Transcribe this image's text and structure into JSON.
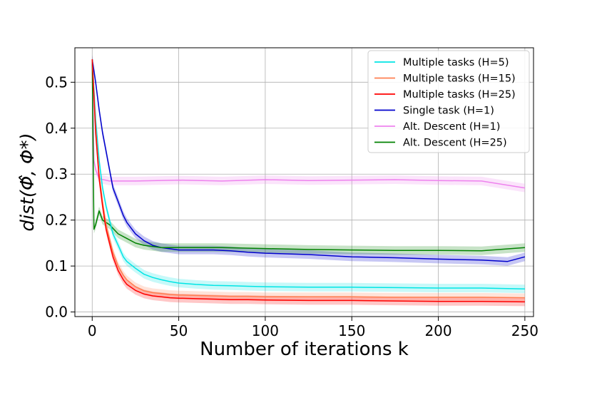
{
  "chart_data": {
    "type": "line",
    "title": "",
    "xlabel": "Number of iterations k",
    "ylabel": "dist(Φ̂, Φ*)",
    "xlim": [
      -10,
      255
    ],
    "ylim": [
      -0.01,
      0.575
    ],
    "xticks": [
      0,
      50,
      100,
      150,
      200,
      250
    ],
    "yticks": [
      0.0,
      0.1,
      0.2,
      0.3,
      0.4,
      0.5
    ],
    "xtick_labels": [
      "0",
      "50",
      "100",
      "150",
      "200",
      "250"
    ],
    "ytick_labels": [
      "0.0",
      "0.1",
      "0.2",
      "0.3",
      "0.4",
      "0.5"
    ],
    "grid": true,
    "legend_position": "upper right",
    "series": [
      {
        "name": "Multiple tasks (H=5)",
        "color": "#00e5e5",
        "x": [
          0,
          2,
          4,
          6,
          8,
          10,
          12,
          15,
          18,
          20,
          25,
          30,
          35,
          40,
          45,
          50,
          60,
          70,
          80,
          90,
          100,
          125,
          150,
          175,
          200,
          225,
          250
        ],
        "y": [
          0.55,
          0.42,
          0.33,
          0.27,
          0.23,
          0.2,
          0.17,
          0.145,
          0.12,
          0.11,
          0.095,
          0.082,
          0.075,
          0.07,
          0.066,
          0.063,
          0.06,
          0.058,
          0.057,
          0.056,
          0.055,
          0.054,
          0.054,
          0.053,
          0.052,
          0.052,
          0.05
        ]
      },
      {
        "name": "Multiple tasks (H=15)",
        "color": "#ff7f50",
        "x": [
          0,
          2,
          4,
          6,
          8,
          10,
          12,
          15,
          18,
          20,
          25,
          30,
          35,
          40,
          45,
          50,
          60,
          70,
          80,
          90,
          100,
          125,
          150,
          175,
          200,
          225,
          250
        ],
        "y": [
          0.55,
          0.4,
          0.3,
          0.24,
          0.19,
          0.16,
          0.13,
          0.1,
          0.08,
          0.07,
          0.055,
          0.046,
          0.042,
          0.04,
          0.038,
          0.037,
          0.036,
          0.035,
          0.034,
          0.034,
          0.033,
          0.033,
          0.033,
          0.032,
          0.032,
          0.032,
          0.031
        ]
      },
      {
        "name": "Multiple tasks (H=25)",
        "color": "#ff0000",
        "x": [
          0,
          2,
          4,
          6,
          8,
          10,
          12,
          15,
          18,
          20,
          25,
          30,
          35,
          40,
          45,
          50,
          60,
          70,
          80,
          90,
          100,
          125,
          150,
          175,
          200,
          225,
          250
        ],
        "y": [
          0.55,
          0.39,
          0.29,
          0.23,
          0.18,
          0.15,
          0.12,
          0.09,
          0.07,
          0.06,
          0.047,
          0.039,
          0.035,
          0.033,
          0.031,
          0.03,
          0.029,
          0.028,
          0.027,
          0.027,
          0.026,
          0.025,
          0.025,
          0.024,
          0.023,
          0.023,
          0.022
        ]
      },
      {
        "name": "Single task (H=1)",
        "color": "#0000cc",
        "x": [
          0,
          2,
          4,
          6,
          8,
          10,
          12,
          15,
          18,
          20,
          25,
          30,
          35,
          40,
          50,
          60,
          70,
          80,
          90,
          100,
          125,
          150,
          175,
          200,
          225,
          240,
          250
        ],
        "y": [
          0.55,
          0.5,
          0.44,
          0.39,
          0.35,
          0.31,
          0.27,
          0.24,
          0.21,
          0.195,
          0.17,
          0.155,
          0.145,
          0.14,
          0.135,
          0.135,
          0.135,
          0.133,
          0.13,
          0.128,
          0.125,
          0.12,
          0.118,
          0.115,
          0.113,
          0.11,
          0.12
        ]
      },
      {
        "name": "Alt. Descent (H=1)",
        "color": "#ee82ee",
        "x": [
          0,
          1,
          2,
          4,
          10,
          25,
          50,
          75,
          100,
          125,
          150,
          175,
          200,
          225,
          250
        ],
        "y": [
          0.55,
          0.33,
          0.31,
          0.29,
          0.285,
          0.285,
          0.287,
          0.285,
          0.288,
          0.286,
          0.287,
          0.288,
          0.286,
          0.285,
          0.27
        ]
      },
      {
        "name": "Alt. Descent (H=25)",
        "color": "#008000",
        "x": [
          0,
          1,
          2,
          4,
          6,
          10,
          15,
          20,
          25,
          30,
          40,
          50,
          75,
          100,
          125,
          150,
          175,
          200,
          225,
          250
        ],
        "y": [
          0.55,
          0.18,
          0.19,
          0.22,
          0.2,
          0.19,
          0.17,
          0.16,
          0.15,
          0.145,
          0.14,
          0.14,
          0.14,
          0.138,
          0.136,
          0.135,
          0.134,
          0.134,
          0.133,
          0.14
        ]
      }
    ]
  }
}
